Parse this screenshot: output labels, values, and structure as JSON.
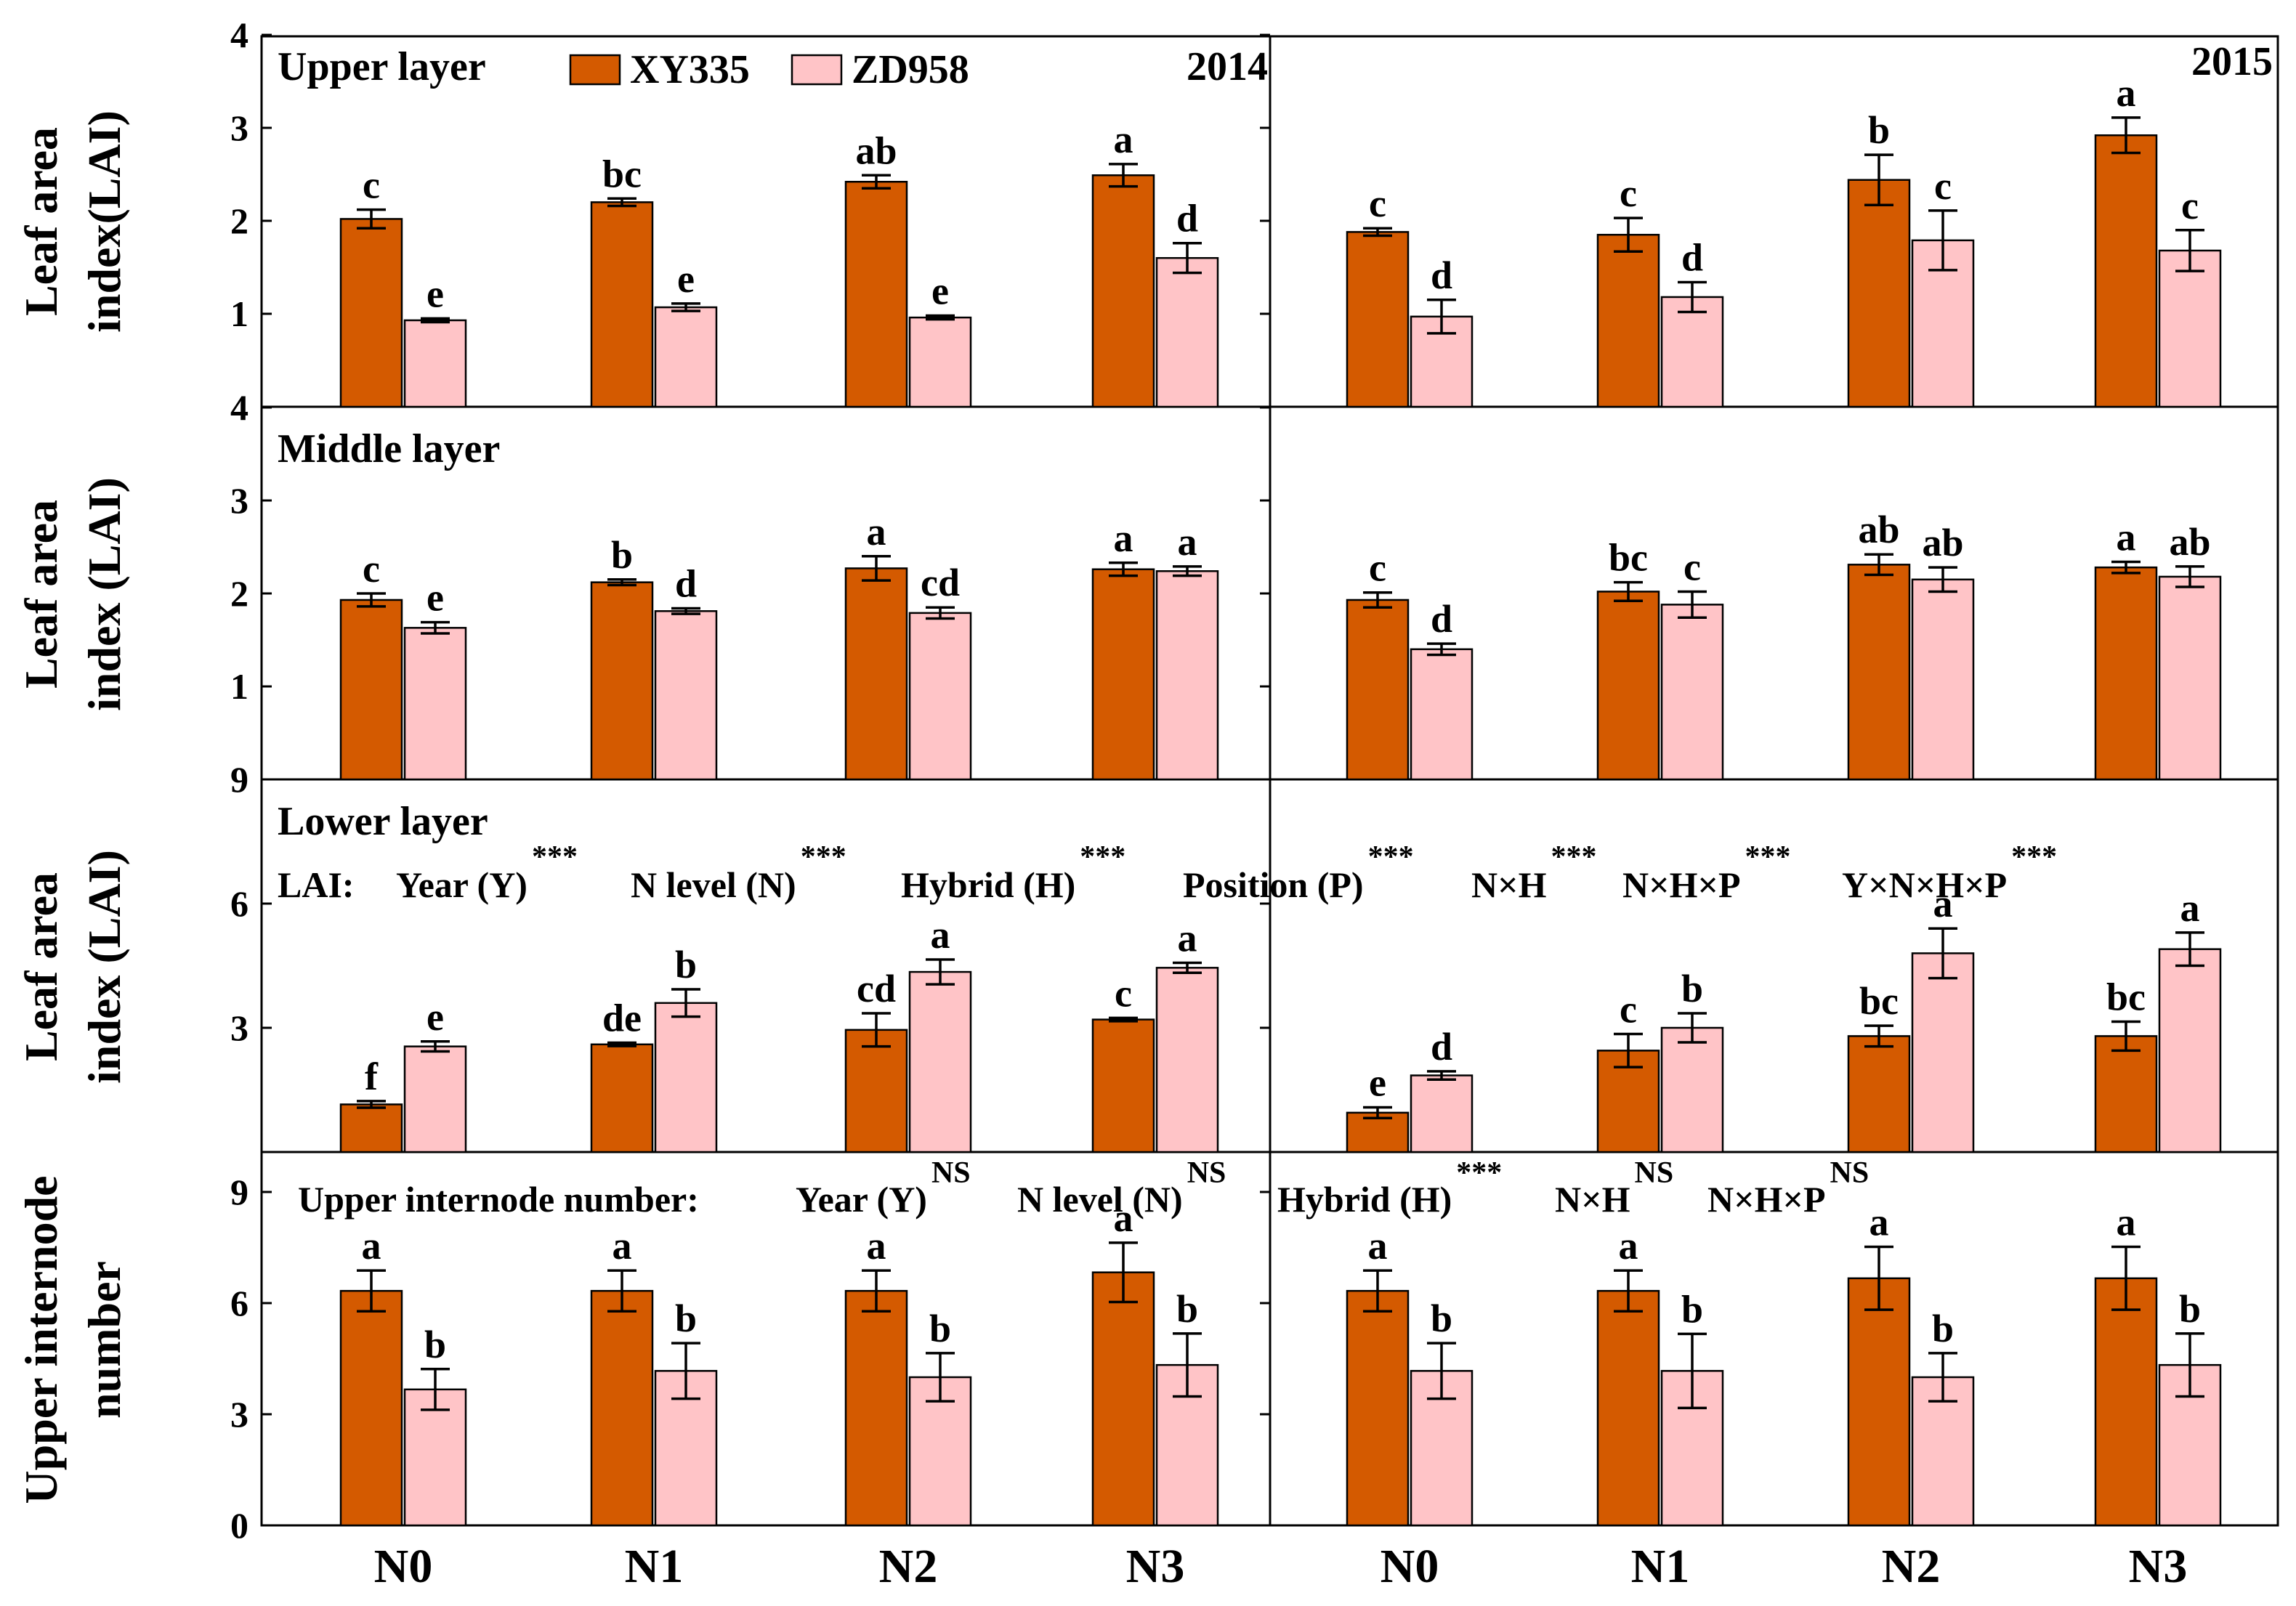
{
  "chart_data": {
    "type": "bar",
    "categories": [
      "N0",
      "N1",
      "N2",
      "N3"
    ],
    "years": [
      "2014",
      "2015"
    ],
    "legend": [
      {
        "name": "XY335",
        "color": "#D45A00"
      },
      {
        "name": "ZD958",
        "color": "#FFC4C7"
      }
    ],
    "rows": [
      {
        "key": "upper",
        "ylabel": [
          "Leaf area",
          "index(LAI)"
        ],
        "ylim": [
          0,
          4
        ],
        "tick_values": [
          1,
          2,
          3,
          4
        ],
        "tick_labels": [
          "1",
          "2",
          "3",
          "4"
        ],
        "panel_label": "Upper layer",
        "series": [
          {
            "name": "XY335",
            "2014": {
              "values": [
                2.02,
                2.2,
                2.42,
                2.49
              ],
              "errors": [
                0.1,
                0.04,
                0.07,
                0.12
              ],
              "letters": [
                "c",
                "bc",
                "ab",
                "a"
              ]
            },
            "2015": {
              "values": [
                1.88,
                1.85,
                2.44,
                2.92
              ],
              "errors": [
                0.04,
                0.18,
                0.27,
                0.19
              ],
              "letters": [
                "c",
                "c",
                "b",
                "a"
              ]
            }
          },
          {
            "name": "ZD958",
            "2014": {
              "values": [
                0.93,
                1.07,
                0.96,
                1.6
              ],
              "errors": [
                0.02,
                0.04,
                0.02,
                0.16
              ],
              "letters": [
                "e",
                "e",
                "e",
                "d"
              ]
            },
            "2015": {
              "values": [
                0.97,
                1.18,
                1.79,
                1.68
              ],
              "errors": [
                0.18,
                0.16,
                0.32,
                0.22
              ],
              "letters": [
                "d",
                "d",
                "c",
                "c"
              ]
            }
          }
        ]
      },
      {
        "key": "middle",
        "ylabel": [
          "Leaf area",
          "index (LAI)"
        ],
        "ylim": [
          0,
          4
        ],
        "tick_values": [
          1,
          2,
          3,
          4
        ],
        "tick_labels": [
          "1",
          "2",
          "3",
          "4"
        ],
        "panel_label": "Middle layer",
        "series": [
          {
            "name": "XY335",
            "2014": {
              "values": [
                1.93,
                2.12,
                2.27,
                2.26
              ],
              "errors": [
                0.07,
                0.03,
                0.13,
                0.07
              ],
              "letters": [
                "c",
                "b",
                "a",
                "a"
              ]
            },
            "2015": {
              "values": [
                1.93,
                2.02,
                2.31,
                2.28
              ],
              "errors": [
                0.08,
                0.1,
                0.11,
                0.06
              ],
              "letters": [
                "c",
                "bc",
                "ab",
                "a"
              ]
            }
          },
          {
            "name": "ZD958",
            "2014": {
              "values": [
                1.63,
                1.81,
                1.79,
                2.24
              ],
              "errors": [
                0.06,
                0.03,
                0.06,
                0.05
              ],
              "letters": [
                "e",
                "d",
                "cd",
                "a"
              ]
            },
            "2015": {
              "values": [
                1.4,
                1.88,
                2.15,
                2.18
              ],
              "errors": [
                0.06,
                0.14,
                0.13,
                0.11
              ],
              "letters": [
                "d",
                "c",
                "ab",
                "ab"
              ]
            }
          }
        ]
      },
      {
        "key": "lower",
        "ylabel": [
          "Leaf area",
          "index (LAI)"
        ],
        "ylim": [
          0,
          9
        ],
        "tick_values": [
          3,
          6,
          9
        ],
        "tick_labels": [
          "3",
          "6",
          "9"
        ],
        "panel_label": "Lower layer",
        "series": [
          {
            "name": "XY335",
            "2014": {
              "values": [
                1.15,
                2.6,
                2.95,
                3.2
              ],
              "errors": [
                0.08,
                0.04,
                0.4,
                0.04
              ],
              "letters": [
                "f",
                "de",
                "cd",
                "c"
              ]
            },
            "2015": {
              "values": [
                0.95,
                2.45,
                2.8,
                2.8
              ],
              "errors": [
                0.13,
                0.4,
                0.25,
                0.35
              ],
              "letters": [
                "e",
                "c",
                "bc",
                "bc"
              ]
            }
          },
          {
            "name": "ZD958",
            "2014": {
              "values": [
                2.55,
                3.6,
                4.35,
                4.45
              ],
              "errors": [
                0.12,
                0.33,
                0.3,
                0.12
              ],
              "letters": [
                "e",
                "b",
                "a",
                "a"
              ]
            },
            "2015": {
              "values": [
                1.85,
                3.0,
                4.8,
                4.9
              ],
              "errors": [
                0.1,
                0.35,
                0.6,
                0.4
              ],
              "letters": [
                "d",
                "b",
                "a",
                "a"
              ]
            }
          }
        ]
      },
      {
        "key": "internode",
        "ylabel": [
          "Upper internode",
          "number"
        ],
        "ylim": [
          0,
          10
        ],
        "tick_values": [
          0,
          3,
          6,
          9
        ],
        "tick_labels": [
          "0",
          "3",
          "6",
          "9"
        ],
        "panel_label": "",
        "series": [
          {
            "name": "XY335",
            "2014": {
              "values": [
                6.33,
                6.33,
                6.33,
                6.83
              ],
              "errors": [
                0.55,
                0.55,
                0.55,
                0.8
              ],
              "letters": [
                "a",
                "a",
                "a",
                "a"
              ]
            },
            "2015": {
              "values": [
                6.33,
                6.33,
                6.67,
                6.67
              ],
              "errors": [
                0.55,
                0.55,
                0.85,
                0.85
              ],
              "letters": [
                "a",
                "a",
                "a",
                "a"
              ]
            }
          },
          {
            "name": "ZD958",
            "2014": {
              "values": [
                3.67,
                4.17,
                4.0,
                4.33
              ],
              "errors": [
                0.55,
                0.75,
                0.65,
                0.85
              ],
              "letters": [
                "b",
                "b",
                "b",
                "b"
              ]
            },
            "2015": {
              "values": [
                4.17,
                4.17,
                4.0,
                4.33
              ],
              "errors": [
                0.75,
                1.0,
                0.65,
                0.85
              ],
              "letters": [
                "b",
                "b",
                "b",
                "b"
              ]
            }
          }
        ]
      }
    ],
    "anova_lai": {
      "label": "LAI:",
      "items": [
        {
          "term": "Year (Y)",
          "sig": "***"
        },
        {
          "term": "N level (N)",
          "sig": "***"
        },
        {
          "term": "Hybrid (H)",
          "sig": "***"
        },
        {
          "term": "Position (P)",
          "sig": "***"
        },
        {
          "term": "N×H",
          "sig": "***"
        },
        {
          "term": "N×H×P",
          "sig": "***"
        },
        {
          "term": "Y×N×H×P",
          "sig": "***"
        }
      ]
    },
    "anova_internode": {
      "label": "Upper internode number:",
      "items": [
        {
          "term": "Year (Y)",
          "sig": "NS"
        },
        {
          "term": "N level (N)",
          "sig": "NS"
        },
        {
          "term": "Hybrid (H)",
          "sig": "***"
        },
        {
          "term": "N×H",
          "sig": "NS"
        },
        {
          "term": "N×H×P",
          "sig": "NS"
        }
      ]
    }
  }
}
